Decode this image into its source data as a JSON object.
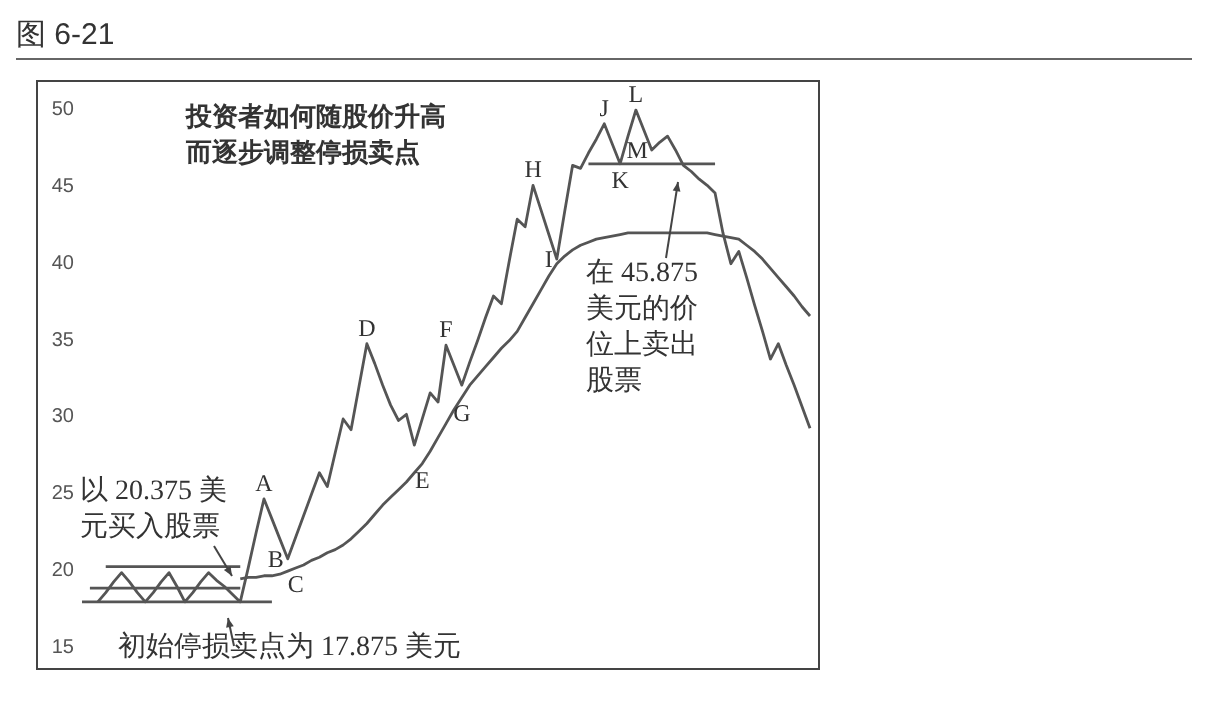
{
  "chart_data": {
    "type": "line",
    "title": "图 6-21",
    "subtitle": "投资者如何随股价升高而逐步调整停损卖点",
    "categories": [
      null,
      null,
      null,
      null,
      null,
      null,
      null,
      null,
      null,
      null,
      null,
      null,
      null,
      null,
      null,
      null,
      null,
      null,
      null,
      null,
      null,
      null,
      null,
      null,
      null,
      null,
      null,
      null,
      null,
      null,
      null,
      null,
      null,
      null,
      null,
      null,
      null,
      null,
      null,
      null,
      null,
      null,
      null,
      null,
      null,
      null,
      null,
      null,
      null,
      null,
      null,
      null,
      null,
      null,
      null,
      null,
      null,
      null,
      null,
      null,
      null,
      null,
      null,
      null,
      null,
      null,
      null,
      null,
      null,
      null,
      null,
      null,
      null,
      null,
      null,
      null,
      null,
      null,
      null,
      null,
      null,
      null,
      null,
      null,
      null,
      null,
      null,
      null,
      null,
      null,
      null,
      null,
      null
    ],
    "series": [
      {
        "color": "#555555",
        "values": [
          null,
          null,
          18.0,
          18.6,
          19.3,
          19.9,
          19.3,
          18.6,
          18.0,
          18.6,
          19.3,
          19.9,
          19.0,
          18.0,
          18.6,
          19.3,
          19.9,
          19.4,
          19.0,
          18.5,
          18.0,
          20.2,
          22.5,
          24.7,
          23.4,
          22.1,
          20.8,
          22.2,
          23.6,
          25.0,
          26.4,
          25.5,
          27.7,
          29.9,
          29.2,
          32.0,
          34.8,
          33.5,
          32.1,
          30.8,
          29.8,
          30.2,
          28.2,
          29.9,
          31.6,
          31.0,
          34.7,
          33.4,
          32.1,
          33.6,
          35.0,
          36.5,
          37.9,
          37.4,
          40.2,
          42.9,
          42.4,
          45.1,
          43.5,
          41.9,
          40.3,
          43.4,
          46.4,
          46.2,
          47.2,
          48.1,
          49.1,
          47.8,
          46.5,
          48.3,
          50.0,
          48.7,
          47.4,
          47.9,
          48.3,
          47.4,
          46.4,
          46.0,
          45.5,
          45.1,
          44.6,
          42.0,
          40.0,
          40.8,
          39.1,
          37.3,
          35.6,
          33.8,
          34.8,
          33.4,
          32.1,
          30.7,
          29.3
        ],
        "value_labels": [
          null,
          null,
          null,
          null,
          null,
          null,
          null,
          null,
          null,
          null,
          null,
          null,
          null,
          null,
          null,
          null,
          null,
          null,
          null,
          null,
          null,
          null,
          null,
          "A",
          null,
          null,
          "B",
          null,
          null,
          null,
          null,
          null,
          null,
          null,
          null,
          null,
          "D",
          null,
          null,
          null,
          null,
          null,
          null,
          null,
          null,
          null,
          "F",
          null,
          null,
          null,
          null,
          null,
          null,
          null,
          null,
          null,
          null,
          "H",
          null,
          null,
          "I",
          null,
          null,
          null,
          null,
          null,
          "J",
          null,
          "K",
          null,
          "L",
          null,
          "M",
          null,
          null,
          null,
          null,
          null,
          null,
          null,
          null,
          null,
          null,
          null,
          null,
          null,
          null,
          null,
          null,
          null,
          null,
          null,
          null
        ]
      },
      {
        "color": "#555555",
        "values": [
          null,
          null,
          null,
          null,
          null,
          null,
          null,
          null,
          null,
          null,
          null,
          null,
          null,
          null,
          null,
          null,
          null,
          null,
          null,
          null,
          19.5,
          19.6,
          19.6,
          19.7,
          19.7,
          19.8,
          20.0,
          20.2,
          20.4,
          20.7,
          20.9,
          21.2,
          21.4,
          21.7,
          22.1,
          22.6,
          23.1,
          23.7,
          24.3,
          24.8,
          25.3,
          25.8,
          26.4,
          27.0,
          27.8,
          28.7,
          29.6,
          30.5,
          31.3,
          32.1,
          32.7,
          33.3,
          33.9,
          34.5,
          35.0,
          35.6,
          36.5,
          37.4,
          38.3,
          39.2,
          40.0,
          40.5,
          40.9,
          41.2,
          41.4,
          41.6,
          41.7,
          41.8,
          41.9,
          42.0,
          42.0,
          42.0,
          42.0,
          42.0,
          42.0,
          42.0,
          42.0,
          42.0,
          42.0,
          42.0,
          41.9,
          41.8,
          41.7,
          41.6,
          41.2,
          40.8,
          40.3,
          39.7,
          39.1,
          38.5,
          37.9,
          37.2,
          36.6
        ],
        "value_labels": [
          null,
          null,
          null,
          null,
          null,
          null,
          null,
          null,
          null,
          null,
          null,
          null,
          null,
          null,
          null,
          null,
          null,
          null,
          null,
          null,
          null,
          null,
          null,
          null,
          null,
          null,
          null,
          "C",
          null,
          null,
          null,
          null,
          null,
          null,
          null,
          null,
          null,
          null,
          null,
          null,
          null,
          null,
          null,
          "E",
          null,
          null,
          null,
          null,
          "G",
          null,
          null,
          null,
          null,
          null,
          null,
          null,
          null,
          null,
          null,
          null,
          null,
          null,
          null,
          null,
          null,
          null,
          null,
          null,
          null,
          null,
          null,
          null,
          null,
          null,
          null,
          null,
          null,
          null,
          null,
          null,
          null,
          null,
          null,
          null,
          null,
          null,
          null,
          null,
          null,
          null,
          null,
          null,
          null
        ]
      },
      {
        "color": "#555555",
        "values": [
          null,
          null,
          null,
          20.3,
          20.3,
          20.3,
          20.3,
          20.3,
          20.3,
          20.3,
          20.3,
          20.3,
          20.3,
          20.3,
          20.3,
          20.3,
          20.3,
          20.3,
          20.3,
          20.3,
          20.3,
          null,
          null,
          null,
          null,
          null,
          null,
          null,
          null,
          null,
          null,
          null,
          null,
          null,
          null,
          null,
          null,
          null,
          null,
          null,
          null,
          null,
          null,
          null,
          null,
          null,
          null,
          null,
          null,
          null,
          null,
          null,
          null,
          null,
          null,
          null,
          null,
          null,
          null,
          null,
          null,
          null,
          null,
          null,
          null,
          null,
          null,
          null,
          null,
          null,
          null,
          null,
          null,
          null,
          null,
          null,
          null,
          null,
          null,
          null,
          null,
          null,
          null,
          null,
          null,
          null,
          null,
          null,
          null,
          null,
          null,
          null,
          null
        ]
      },
      {
        "color": "#555555",
        "values": [
          null,
          18.9,
          18.9,
          18.9,
          18.9,
          18.9,
          18.9,
          18.9,
          18.9,
          18.9,
          18.9,
          18.9,
          18.9,
          18.9,
          18.9,
          18.9,
          18.9,
          18.9,
          18.9,
          18.9,
          18.9,
          null,
          null,
          null,
          null,
          null,
          null,
          null,
          null,
          null,
          null,
          null,
          null,
          null,
          null,
          null,
          null,
          null,
          null,
          null,
          null,
          null,
          null,
          null,
          null,
          null,
          null,
          null,
          null,
          null,
          null,
          null,
          null,
          null,
          null,
          null,
          null,
          null,
          null,
          null,
          null,
          null,
          null,
          null,
          null,
          null,
          null,
          null,
          null,
          null,
          null,
          null,
          null,
          null,
          null,
          null,
          null,
          null,
          null,
          null,
          null,
          null,
          null,
          null,
          null,
          null,
          null,
          null,
          null,
          null,
          null,
          null,
          null
        ]
      },
      {
        "color": "#555555",
        "values": [
          18.0,
          18.0,
          18.0,
          18.0,
          18.0,
          18.0,
          18.0,
          18.0,
          18.0,
          18.0,
          18.0,
          18.0,
          18.0,
          18.0,
          18.0,
          18.0,
          18.0,
          18.0,
          18.0,
          18.0,
          18.0,
          18.0,
          18.0,
          18.0,
          18.0,
          null,
          null,
          null,
          null,
          null,
          null,
          null,
          null,
          null,
          null,
          null,
          null,
          null,
          null,
          null,
          null,
          null,
          null,
          null,
          null,
          null,
          null,
          null,
          null,
          null,
          null,
          null,
          null,
          null,
          null,
          null,
          null,
          null,
          null,
          null,
          null,
          null,
          null,
          null,
          null,
          null,
          null,
          null,
          null,
          null,
          null,
          null,
          null,
          null,
          null,
          null,
          null,
          null,
          null,
          null,
          null,
          null,
          null,
          null,
          null,
          null,
          null,
          null,
          null,
          null,
          null,
          null,
          null
        ]
      },
      {
        "color": "#555555",
        "values": [
          null,
          null,
          null,
          null,
          null,
          null,
          null,
          null,
          null,
          null,
          null,
          null,
          null,
          null,
          null,
          null,
          null,
          null,
          null,
          null,
          null,
          null,
          null,
          null,
          null,
          null,
          null,
          null,
          null,
          null,
          null,
          null,
          null,
          null,
          null,
          null,
          null,
          null,
          null,
          null,
          null,
          null,
          null,
          null,
          null,
          null,
          null,
          null,
          null,
          null,
          null,
          null,
          null,
          null,
          null,
          null,
          null,
          null,
          null,
          null,
          null,
          null,
          null,
          null,
          46.5,
          46.5,
          46.5,
          46.5,
          46.5,
          46.5,
          46.5,
          46.5,
          46.5,
          46.5,
          46.5,
          46.5,
          46.5,
          46.5,
          46.5,
          46.5,
          46.5,
          null,
          null,
          null,
          null,
          null,
          null,
          null,
          null,
          null,
          null,
          null,
          null
        ]
      }
    ],
    "annotations": [
      "以 20.375 美元买入股票",
      "初始停损卖点为 17.875 美元",
      "在 45.875 美元的价位上卖出股票"
    ],
    "ylim": [
      15,
      50
    ],
    "yticks": [
      15,
      20,
      25,
      30,
      35,
      40,
      45,
      50
    ],
    "tick_labels": "y",
    "grid": false
  }
}
